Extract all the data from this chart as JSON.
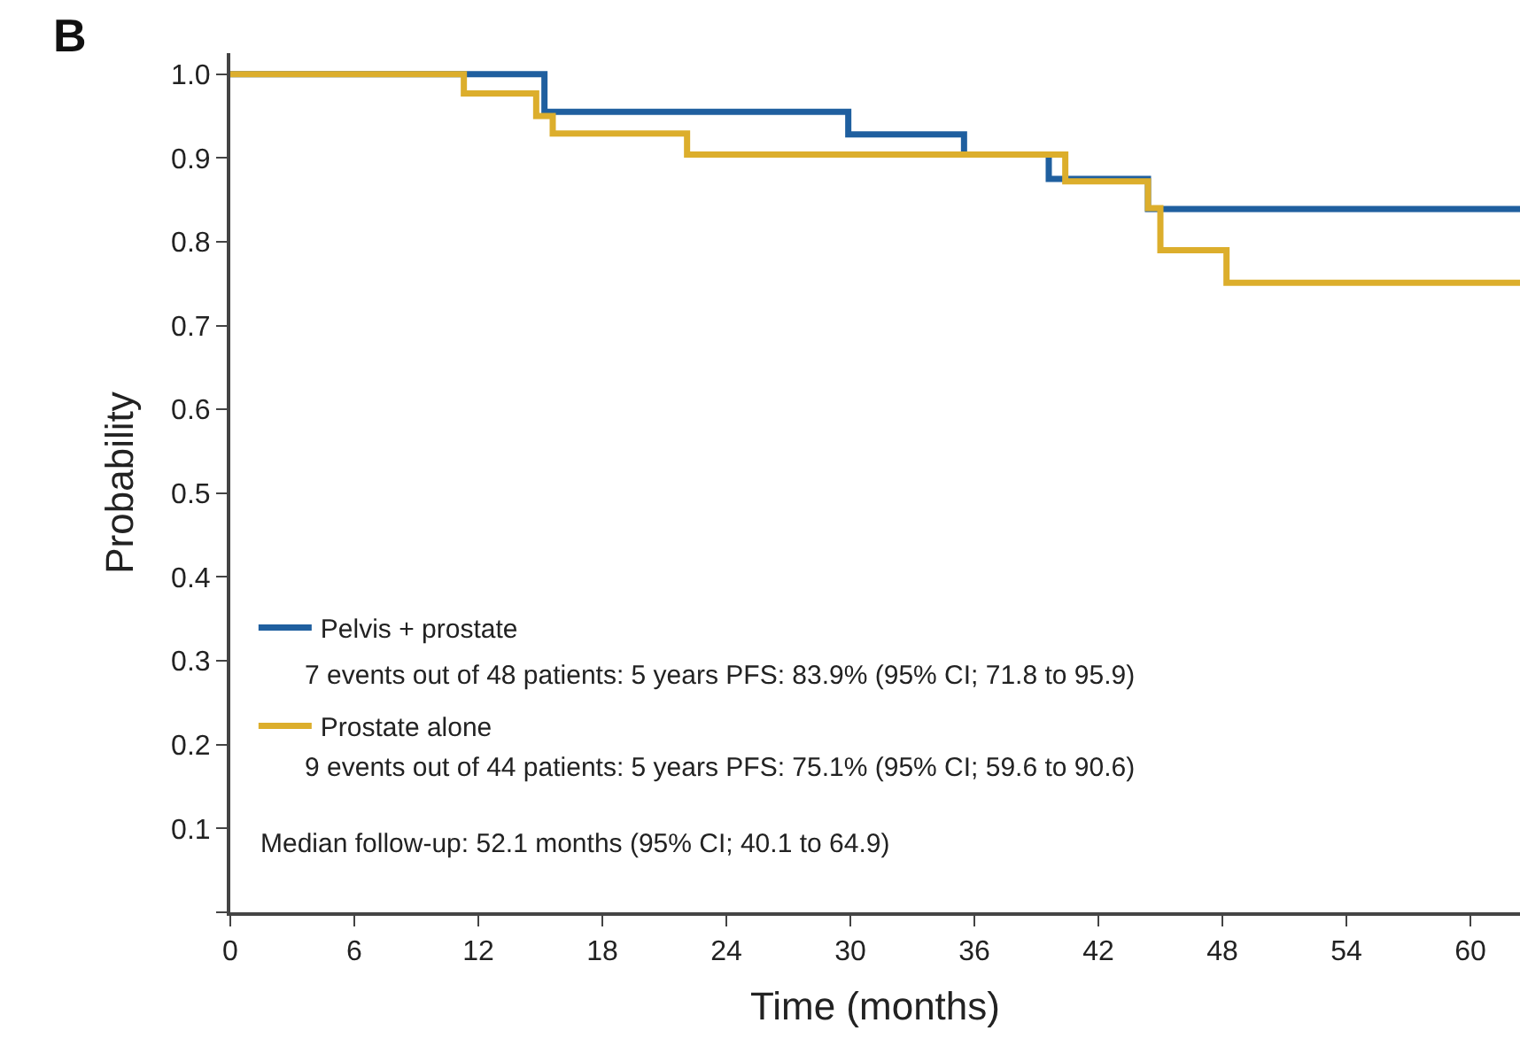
{
  "chart_data": {
    "type": "step",
    "xlabel": "Time (months)",
    "ylabel": "Probability",
    "xlim": [
      0,
      62.4
    ],
    "ylim": [
      0,
      1.025
    ],
    "xticks": [
      0,
      6,
      12,
      18,
      24,
      30,
      36,
      42,
      48,
      54,
      60
    ],
    "yticks": [
      {
        "value": 0,
        "label": null
      },
      0.1,
      0.2,
      0.3,
      0.4,
      0.5,
      0.6,
      0.7,
      0.8,
      0.9,
      {
        "value": 1.0,
        "label": "1.0"
      }
    ],
    "legend": "bottom left",
    "marker": "none",
    "line_style": "solid",
    "series": [
      {
        "name": "Pelvis + prostate",
        "color": "#1f5f9f",
        "x": [
          0,
          15.2,
          29.9,
          35.5,
          39.6,
          44.4,
          62.4
        ],
        "values": [
          1.0,
          0.955,
          0.928,
          0.904,
          0.875,
          0.839,
          0.839
        ]
      },
      {
        "name": "Prostate alone",
        "color": "#dcae2c",
        "x": [
          0,
          11.3,
          14.8,
          15.6,
          22.1,
          40.4,
          44.4,
          45.0,
          48.2,
          62.4
        ],
        "values": [
          1.0,
          0.977,
          0.95,
          0.929,
          0.904,
          0.872,
          0.84,
          0.79,
          0.751,
          0.751
        ]
      }
    ],
    "annotations": [
      "B",
      "7 events out of 48 patients: 5 years PFS: 83.9% (95% CI; 71.8 to 95.9)",
      "9 events out of 44 patients: 5 years PFS: 75.1% (95% CI; 59.6 to 90.6)",
      "Median follow-up: 52.1 months (95% CI; 40.1 to 64.9)"
    ]
  }
}
